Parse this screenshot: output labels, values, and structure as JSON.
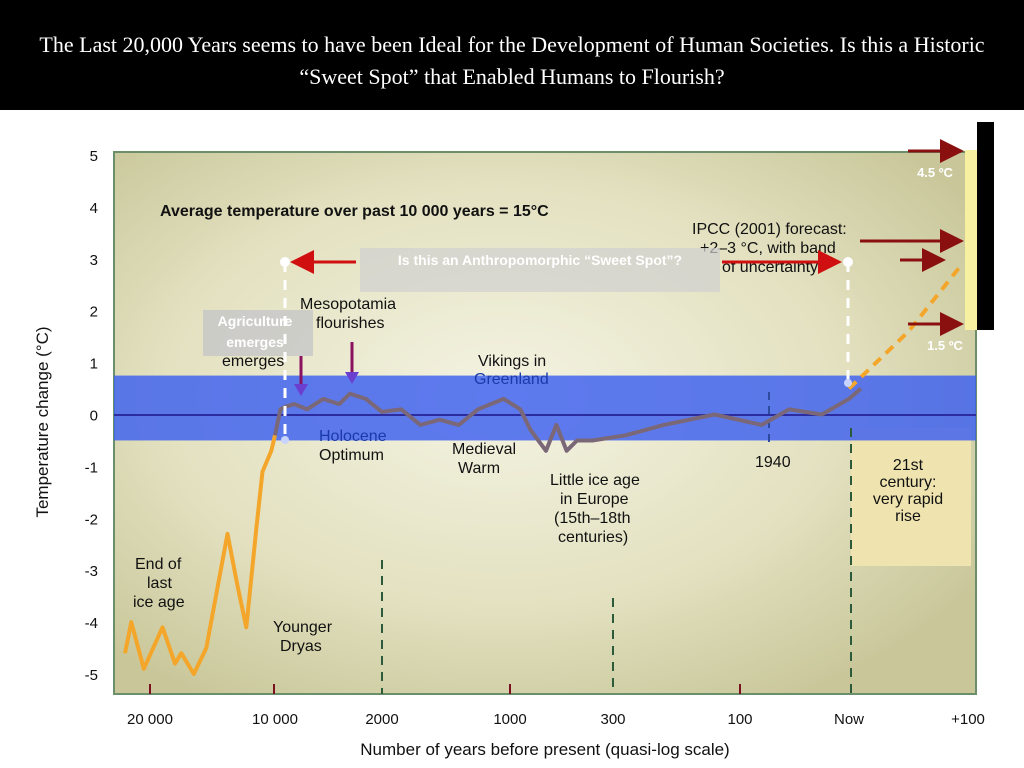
{
  "slide": {
    "title": "The Last 20,000 Years seems to have been Ideal for the Development of  Human Societies. Is this a Historic “Sweet Spot” that Enabled Humans to Flourish?"
  },
  "callouts": {
    "sweet_spot": "Is this an Anthropomorphic “Sweet Spot”?",
    "agriculture_line1": "Agriculture",
    "agriculture_line2": "emerges",
    "high_label": "4.5 ºC",
    "low_label": "1.5 ºC"
  },
  "colors": {
    "background": "#000000",
    "plot_background": "#e6e4c4",
    "sweet_spot_band": "#3c5ff0",
    "zero_line": "#2c2ca0",
    "past_curve_early": "#f4a62a",
    "past_curve_late": "#7a6878",
    "forecast_dash": "#f4a62a",
    "arrows_red": "#d01010",
    "arrows_darkred": "#8a1010",
    "annotation_text": "#111111",
    "greenland_text": "#1b3aa8",
    "panel_21st": "#efe4b0"
  },
  "chart_data": {
    "type": "line",
    "xlabel": "Number of years before present (quasi-log scale)",
    "ylabel": "Temperature change (°C)",
    "ylim": [
      -5,
      5
    ],
    "yticks": [
      "5",
      "4",
      "3",
      "2",
      "1",
      "0",
      "-1",
      "-2",
      "-3",
      "-4",
      "-5"
    ],
    "xticks": [
      "20 000",
      "10 000",
      "2000",
      "1000",
      "300",
      "100",
      "Now",
      "+100"
    ],
    "grid": false,
    "annotations": {
      "avg_temp": "Average temperature over past 10 000 years = 15°C",
      "ipcc_line1": "IPCC (2001) forecast:",
      "ipcc_line2": "+2–3 °C, with band",
      "ipcc_line3": "of uncertainty",
      "mesopotamia_line1": "Mesopotamia",
      "mesopotamia_line2": "flourishes",
      "vikings_line1": "Vikings in",
      "vikings_line2": "Greenland",
      "holocene_line1": "Holocene",
      "holocene_line2": "Optimum",
      "medieval_line1": "Medieval",
      "medieval_line2": "Warm",
      "little_ice_line1": "Little ice age",
      "little_ice_line2": "in Europe",
      "little_ice_line3": "(15th–18th",
      "little_ice_line4": "centuries)",
      "year_1940": "1940",
      "end_ice_line1": "End of",
      "end_ice_line2": "last",
      "end_ice_line3": "ice age",
      "younger_line1": "Younger",
      "younger_line2": "Dryas",
      "century_line1": "21st",
      "century_line2": "century:",
      "century_line3": "very rapid",
      "century_line4": "rise"
    },
    "x_position_scale": [
      {
        "tick": "20 000",
        "pos": 0
      },
      {
        "tick": "10 000",
        "pos": 1
      },
      {
        "tick": "2000",
        "pos": 2
      },
      {
        "tick": "1000",
        "pos": 3
      },
      {
        "tick": "300",
        "pos": 4
      },
      {
        "tick": "100",
        "pos": 5
      },
      {
        "tick": "Now",
        "pos": 6
      },
      {
        "tick": "+100",
        "pos": 7
      }
    ],
    "series": [
      {
        "x": [
          -0.2,
          -0.15,
          -0.05,
          0.1,
          0.2,
          0.25,
          0.35,
          0.45,
          0.55,
          0.62,
          0.7,
          0.77,
          0.85,
          0.9,
          0.97,
          1.0,
          1.05,
          1.1,
          1.18,
          1.3,
          1.45,
          1.6,
          1.7,
          1.85,
          2.0,
          2.15,
          2.3,
          2.45,
          2.6,
          2.75,
          2.95,
          3.1,
          3.2,
          3.35,
          3.45,
          3.55,
          3.65,
          3.8,
          4.1,
          4.4,
          4.8,
          5.2,
          5.45,
          5.75,
          6.0,
          6.1
        ],
        "y": [
          -4.6,
          -4.0,
          -4.9,
          -4.1,
          -4.8,
          -4.6,
          -5.0,
          -4.5,
          -3.2,
          -2.3,
          -3.3,
          -4.1,
          -2.2,
          -1.1,
          -0.7,
          -0.4,
          0.1,
          0.15,
          0.2,
          0.1,
          0.3,
          0.2,
          0.4,
          0.3,
          0.05,
          0.1,
          -0.2,
          -0.1,
          -0.2,
          0.1,
          0.3,
          0.1,
          -0.3,
          -0.7,
          -0.2,
          -0.7,
          -0.5,
          -0.5,
          -0.4,
          -0.2,
          0.0,
          -0.2,
          0.1,
          0.0,
          0.3,
          0.5
        ]
      },
      {
        "x": [
          6.0,
          6.5,
          6.95
        ],
        "y": [
          0.5,
          1.6,
          2.9
        ]
      }
    ],
    "sweet_spot_band_y": [
      -0.5,
      0.75
    ]
  }
}
